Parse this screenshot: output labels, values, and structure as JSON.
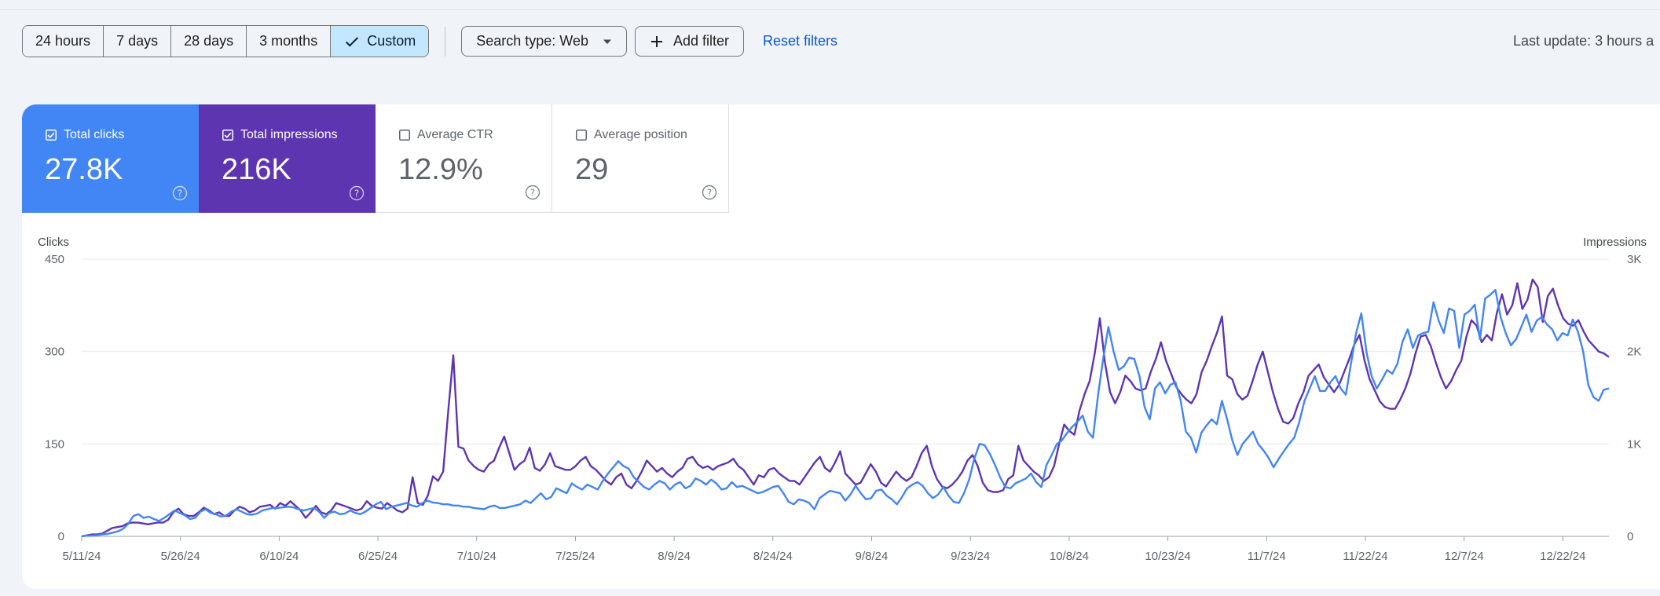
{
  "filters": {
    "ranges": [
      {
        "label": "24 hours",
        "selected": false
      },
      {
        "label": "7 days",
        "selected": false
      },
      {
        "label": "28 days",
        "selected": false
      },
      {
        "label": "3 months",
        "selected": false
      },
      {
        "label": "Custom",
        "selected": true
      }
    ],
    "search_type_label": "Search type: Web",
    "add_filter_label": "Add filter",
    "reset_label": "Reset filters",
    "last_update": "Last update: 3 hours a"
  },
  "metrics": [
    {
      "label": "Total clicks",
      "value": "27.8K",
      "checked": true,
      "color": "#4285f4"
    },
    {
      "label": "Total impressions",
      "value": "216K",
      "checked": true,
      "color": "#5e35b1"
    },
    {
      "label": "Average CTR",
      "value": "12.9%",
      "checked": false,
      "color": "#ffffff"
    },
    {
      "label": "Average position",
      "value": "29",
      "checked": false,
      "color": "#ffffff"
    }
  ],
  "chart_data": {
    "type": "line",
    "left_axis": {
      "label": "Clicks",
      "ticks": [
        "0",
        "150",
        "300",
        "450"
      ],
      "min": 0,
      "max": 450
    },
    "right_axis": {
      "label": "Impressions",
      "ticks": [
        "0",
        "1K",
        "2K",
        "3K"
      ],
      "min": 0,
      "max": 3000
    },
    "x_ticks": [
      "5/11/24",
      "5/26/24",
      "6/10/24",
      "6/25/24",
      "7/10/24",
      "7/25/24",
      "8/9/24",
      "8/24/24",
      "9/8/24",
      "9/23/24",
      "10/8/24",
      "10/23/24",
      "11/7/24",
      "11/22/24",
      "12/7/24",
      "12/22/24"
    ],
    "x_start_date": "2024-05-11",
    "x_end_date": "2024-12-29",
    "grid": true,
    "series": [
      {
        "name": "Total clicks",
        "axis": "left",
        "color": "#4285f4",
        "values": [
          0,
          1,
          1,
          2,
          3,
          4,
          6,
          8,
          12,
          20,
          33,
          36,
          30,
          32,
          28,
          25,
          30,
          36,
          42,
          38,
          34,
          28,
          30,
          40,
          44,
          38,
          36,
          32,
          34,
          40,
          44,
          40,
          36,
          35,
          37,
          42,
          44,
          46,
          46,
          47,
          48,
          47,
          44,
          42,
          44,
          46,
          40,
          30,
          38,
          40,
          36,
          37,
          42,
          38,
          36,
          40,
          46,
          52,
          56,
          44,
          48,
          50,
          52,
          54,
          50,
          48,
          54,
          58,
          55,
          54,
          52,
          52,
          50,
          50,
          48,
          48,
          46,
          45,
          44,
          48,
          50,
          46,
          46,
          48,
          50,
          52,
          58,
          54,
          62,
          70,
          60,
          64,
          78,
          74,
          70,
          86,
          80,
          76,
          84,
          80,
          76,
          90,
          102,
          112,
          122,
          114,
          110,
          96,
          88,
          80,
          76,
          84,
          90,
          86,
          76,
          84,
          88,
          78,
          82,
          94,
          90,
          84,
          92,
          86,
          76,
          78,
          88,
          80,
          82,
          78,
          74,
          70,
          72,
          76,
          80,
          82,
          70,
          56,
          52,
          60,
          58,
          54,
          44,
          62,
          68,
          74,
          72,
          70,
          58,
          68,
          82,
          70,
          60,
          62,
          74,
          76,
          66,
          60,
          52,
          64,
          78,
          84,
          88,
          82,
          70,
          62,
          68,
          80,
          66,
          56,
          54,
          70,
          92,
          126,
          150,
          148,
          134,
          116,
          96,
          80,
          78,
          86,
          90,
          94,
          102,
          88,
          80,
          116,
          132,
          150,
          156,
          168,
          178,
          186,
          196,
          170,
          160,
          230,
          290,
          340,
          300,
          270,
          276,
          290,
          288,
          260,
          210,
          190,
          240,
          250,
          232,
          246,
          250,
          220,
          170,
          160,
          136,
          168,
          180,
          190,
          182,
          220,
          190,
          156,
          132,
          150,
          160,
          170,
          150,
          140,
          128,
          112,
          126,
          138,
          150,
          160,
          186,
          220,
          240,
          260,
          236,
          236,
          250,
          260,
          240,
          230,
          280,
          330,
          362,
          300,
          260,
          240,
          254,
          270,
          264,
          280,
          316,
          336,
          306,
          326,
          330,
          332,
          380,
          350,
          330,
          370,
          366,
          306,
          360,
          366,
          376,
          320,
          386,
          392,
          400,
          356,
          330,
          310,
          320,
          340,
          360,
          332,
          350,
          356,
          344,
          336,
          318,
          330,
          326,
          352,
          332,
          300,
          246,
          226,
          220,
          238,
          240
        ]
      },
      {
        "name": "Total impressions",
        "axis": "right",
        "color": "#5e35b1",
        "values": [
          0,
          10,
          20,
          20,
          30,
          60,
          90,
          100,
          110,
          140,
          150,
          148,
          140,
          130,
          140,
          150,
          150,
          180,
          260,
          300,
          240,
          220,
          220,
          260,
          310,
          280,
          240,
          260,
          220,
          220,
          280,
          320,
          300,
          260,
          280,
          320,
          330,
          340,
          300,
          360,
          330,
          380,
          330,
          280,
          200,
          260,
          330,
          260,
          240,
          280,
          360,
          340,
          320,
          300,
          280,
          300,
          380,
          330,
          310,
          300,
          360,
          320,
          280,
          260,
          300,
          640,
          360,
          340,
          440,
          650,
          600,
          700,
          1360,
          1960,
          970,
          950,
          820,
          760,
          720,
          700,
          780,
          820,
          960,
          1080,
          900,
          720,
          780,
          820,
          960,
          740,
          710,
          780,
          900,
          760,
          740,
          720,
          720,
          760,
          820,
          860,
          760,
          720,
          660,
          600,
          560,
          640,
          680,
          560,
          520,
          600,
          700,
          820,
          760,
          700,
          740,
          680,
          640,
          700,
          740,
          840,
          860,
          780,
          740,
          760,
          720,
          760,
          780,
          800,
          840,
          760,
          720,
          640,
          560,
          660,
          640,
          720,
          740,
          680,
          640,
          600,
          600,
          560,
          640,
          720,
          800,
          860,
          740,
          700,
          800,
          920,
          680,
          620,
          560,
          580,
          680,
          780,
          700,
          580,
          540,
          620,
          700,
          640,
          600,
          640,
          760,
          900,
          980,
          760,
          620,
          540,
          520,
          560,
          620,
          700,
          820,
          880,
          760,
          580,
          500,
          480,
          480,
          500,
          620,
          660,
          980,
          820,
          760,
          700,
          660,
          600,
          640,
          760,
          1000,
          1210,
          1140,
          1100,
          1360,
          1540,
          1680,
          1980,
          2360,
          1880,
          1560,
          1440,
          1560,
          1740,
          1680,
          1600,
          1580,
          1600,
          1780,
          1920,
          2100,
          1900,
          1760,
          1620,
          1540,
          1480,
          1440,
          1540,
          1780,
          1900,
          2060,
          2200,
          2380,
          1740,
          1700,
          1540,
          1480,
          1520,
          1680,
          1860,
          2000,
          1780,
          1560,
          1380,
          1240,
          1220,
          1280,
          1440,
          1560,
          1740,
          1800,
          1860,
          1720,
          1640,
          1560,
          1640,
          1780,
          1920,
          2080,
          2180,
          1900,
          1700,
          1580,
          1460,
          1400,
          1380,
          1380,
          1480,
          1600,
          1760,
          1980,
          2160,
          2180,
          2060,
          1880,
          1720,
          1600,
          1680,
          1800,
          1900,
          2160,
          2340,
          2280,
          2100,
          2180,
          2120,
          2420,
          2620,
          2400,
          2500,
          2740,
          2460,
          2560,
          2780,
          2700,
          2320,
          2600,
          2680,
          2500,
          2360,
          2300,
          2280,
          2340,
          2220,
          2120,
          2060,
          2000,
          1980,
          1940
        ]
      }
    ]
  }
}
